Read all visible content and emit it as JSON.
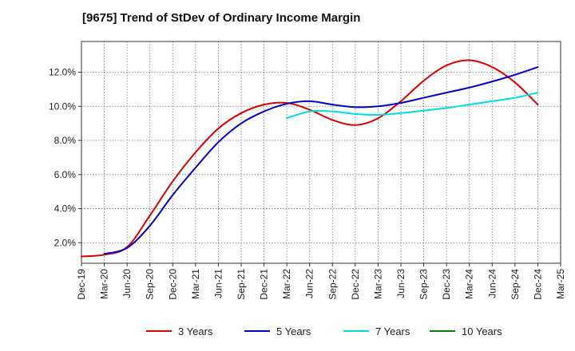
{
  "chart_data": {
    "type": "line",
    "title": "[9675]  Trend of StDev of Ordinary Income Margin",
    "xlabel": "",
    "ylabel": "",
    "x": [
      "Dec-19",
      "Mar-20",
      "Jun-20",
      "Sep-20",
      "Dec-20",
      "Mar-21",
      "Jun-21",
      "Sep-21",
      "Dec-21",
      "Mar-22",
      "Jun-22",
      "Sep-22",
      "Dec-22",
      "Mar-23",
      "Jun-23",
      "Sep-23",
      "Dec-23",
      "Mar-24",
      "Jun-24",
      "Sep-24",
      "Dec-24",
      "Mar-25"
    ],
    "ylim": [
      0.8,
      13.8
    ],
    "yticks": [
      2.0,
      4.0,
      6.0,
      8.0,
      10.0,
      12.0
    ],
    "ytick_labels": [
      "2.0%",
      "4.0%",
      "6.0%",
      "8.0%",
      "10.0%",
      "12.0%"
    ],
    "grid": true,
    "legend_position": "bottom",
    "series": [
      {
        "name": "3 Years",
        "color": "#dd0000",
        "values": [
          1.2,
          1.3,
          1.75,
          3.6,
          5.6,
          7.3,
          8.7,
          9.6,
          10.1,
          10.2,
          9.8,
          9.2,
          8.9,
          9.3,
          10.3,
          11.5,
          12.4,
          12.7,
          12.3,
          11.4,
          10.1,
          null
        ]
      },
      {
        "name": "5 Years",
        "color": "#0000cc",
        "values": [
          null,
          1.35,
          1.7,
          3.0,
          4.8,
          6.4,
          7.9,
          9.0,
          9.7,
          10.15,
          10.3,
          10.1,
          9.95,
          10.0,
          10.2,
          10.5,
          10.8,
          11.1,
          11.45,
          11.85,
          12.3,
          null
        ]
      },
      {
        "name": "7 Years",
        "color": "#00dddd",
        "values": [
          null,
          null,
          null,
          null,
          null,
          null,
          null,
          null,
          null,
          9.3,
          9.7,
          9.7,
          9.55,
          9.5,
          9.6,
          9.75,
          9.9,
          10.1,
          10.3,
          10.5,
          10.8,
          null
        ]
      },
      {
        "name": "10 Years",
        "color": "#008000",
        "values": [
          null,
          null,
          null,
          null,
          null,
          null,
          null,
          null,
          null,
          null,
          null,
          null,
          null,
          null,
          null,
          null,
          null,
          null,
          null,
          null,
          null,
          null
        ]
      }
    ]
  }
}
